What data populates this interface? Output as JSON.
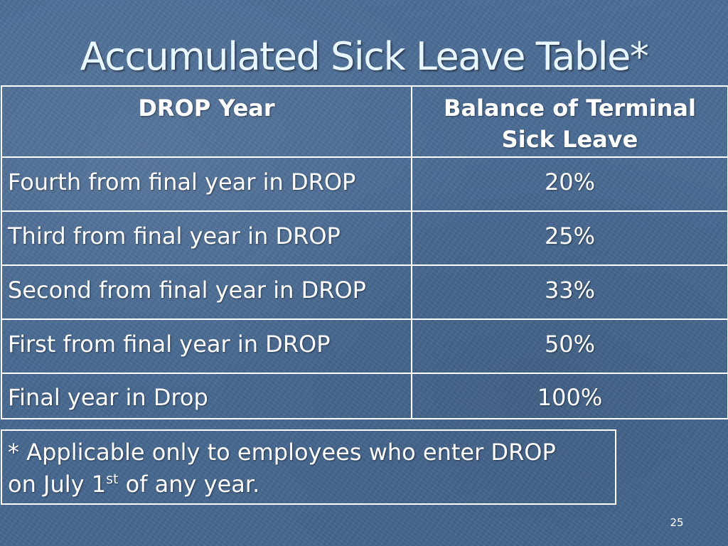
{
  "slide": {
    "title": "Accumulated Sick Leave Table*",
    "number": "25"
  },
  "table": {
    "headers": [
      "DROP Year",
      "Balance of Terminal Sick Leave"
    ],
    "rows": [
      {
        "year": "Fourth from final year in DROP",
        "balance": "20%"
      },
      {
        "year": "Third from final year in DROP",
        "balance": "25%"
      },
      {
        "year": "Second from final year in DROP",
        "balance": "33%"
      },
      {
        "year": "First from final year in DROP",
        "balance": "50%"
      },
      {
        "year": "Final year in Drop",
        "balance": "100%"
      }
    ]
  },
  "footnote": {
    "line1": "* Applicable only to employees who enter DROP",
    "line2_before": "on July 1",
    "line2_sup": "st",
    "line2_after": " of any year."
  },
  "colors": {
    "background": "#4a6b94",
    "title_text": "#e8f6ff",
    "text": "#ffffff",
    "border": "#ffffff"
  }
}
